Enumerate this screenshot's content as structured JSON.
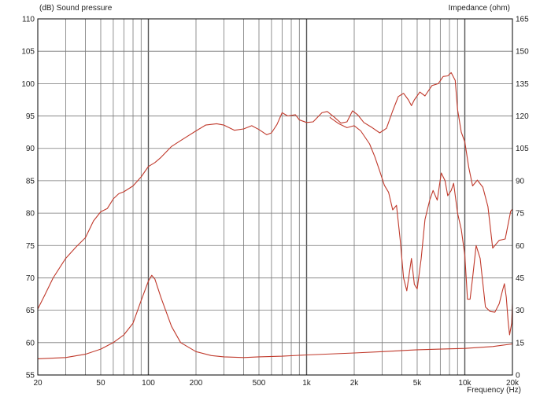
{
  "chart_data": {
    "type": "line",
    "ylabel_left": "(dB)  Sound pressure",
    "ylabel_right": "Impedance  (ohm)",
    "xlabel": "Frequency  (Hz)",
    "x_scale": "log",
    "xlim": [
      20,
      20000
    ],
    "ylim_left": [
      55,
      110
    ],
    "ylim_right": [
      0,
      165
    ],
    "grid": true,
    "x_ticks": [
      {
        "v": 20,
        "label": "20"
      },
      {
        "v": 50,
        "label": "50"
      },
      {
        "v": 100,
        "label": "100"
      },
      {
        "v": 200,
        "label": "200"
      },
      {
        "v": 500,
        "label": "500"
      },
      {
        "v": 1000,
        "label": "1k"
      },
      {
        "v": 2000,
        "label": "2k"
      },
      {
        "v": 5000,
        "label": "5k"
      },
      {
        "v": 10000,
        "label": "10k"
      },
      {
        "v": 20000,
        "label": "20k"
      }
    ],
    "y_ticks_left": [
      "55",
      "60",
      "65",
      "70",
      "75",
      "80",
      "85",
      "90",
      "95",
      "100",
      "105",
      "110"
    ],
    "y_ticks_right": [
      "0",
      "15",
      "30",
      "45",
      "60",
      "75",
      "90",
      "105",
      "120",
      "135",
      "150",
      "165"
    ],
    "colors": {
      "curve": "#c0392b",
      "grid_major": "#555555",
      "grid_minor": "#777777",
      "axis": "#000000"
    },
    "series": [
      {
        "axis": "left",
        "points": [
          [
            20,
            65.2
          ],
          [
            22,
            67.2
          ],
          [
            25,
            70
          ],
          [
            30,
            73
          ],
          [
            35,
            74.8
          ],
          [
            40,
            76.2
          ],
          [
            45,
            78.8
          ],
          [
            50,
            80.2
          ],
          [
            55,
            80.7
          ],
          [
            60,
            82.2
          ],
          [
            65,
            83
          ],
          [
            70,
            83.3
          ],
          [
            80,
            84.2
          ],
          [
            90,
            85.6
          ],
          [
            100,
            87.2
          ],
          [
            110,
            87.8
          ],
          [
            120,
            88.6
          ],
          [
            140,
            90.3
          ],
          [
            160,
            91.2
          ],
          [
            180,
            92
          ],
          [
            200,
            92.7
          ],
          [
            230,
            93.6
          ],
          [
            270,
            93.8
          ],
          [
            300,
            93.6
          ],
          [
            350,
            92.8
          ],
          [
            400,
            93
          ],
          [
            450,
            93.5
          ],
          [
            500,
            92.9
          ],
          [
            560,
            92.1
          ],
          [
            600,
            92.4
          ],
          [
            650,
            93.7
          ],
          [
            700,
            95.5
          ],
          [
            760,
            95
          ],
          [
            850,
            95.2
          ],
          [
            900,
            94.4
          ],
          [
            1000,
            94
          ],
          [
            1100,
            94.1
          ],
          [
            1250,
            95.5
          ],
          [
            1350,
            95.7
          ],
          [
            1500,
            94.8
          ],
          [
            1650,
            93.9
          ],
          [
            1800,
            94.1
          ],
          [
            1950,
            95.8
          ],
          [
            2100,
            95.2
          ],
          [
            2300,
            94
          ],
          [
            2600,
            93.2
          ],
          [
            2900,
            92.4
          ],
          [
            3200,
            93.1
          ],
          [
            3500,
            95.8
          ],
          [
            3800,
            98
          ],
          [
            4100,
            98.5
          ],
          [
            4400,
            97.5
          ],
          [
            4600,
            96.6
          ],
          [
            4800,
            97.5
          ],
          [
            5200,
            98.7
          ],
          [
            5600,
            98.1
          ],
          [
            6200,
            99.7
          ],
          [
            6800,
            100
          ],
          [
            7300,
            101.1
          ],
          [
            7800,
            101.2
          ],
          [
            8200,
            101.7
          ],
          [
            8700,
            100.5
          ],
          [
            9000,
            96
          ],
          [
            9500,
            92.5
          ],
          [
            10000,
            91
          ],
          [
            10600,
            87
          ],
          [
            11200,
            84.2
          ],
          [
            12000,
            85.1
          ],
          [
            13000,
            84
          ],
          [
            14000,
            81
          ],
          [
            15000,
            74.6
          ],
          [
            16500,
            75.8
          ],
          [
            18000,
            76
          ],
          [
            19500,
            80.3
          ],
          [
            20000,
            80.6
          ]
        ]
      },
      {
        "axis": "left",
        "points": [
          [
            20,
            57.5
          ],
          [
            30,
            57.7
          ],
          [
            40,
            58.2
          ],
          [
            50,
            59
          ],
          [
            60,
            60
          ],
          [
            70,
            61.2
          ],
          [
            80,
            63
          ],
          [
            90,
            66.5
          ],
          [
            100,
            69.5
          ],
          [
            105,
            70.4
          ],
          [
            110,
            69.8
          ],
          [
            120,
            67
          ],
          [
            140,
            62.5
          ],
          [
            160,
            60
          ],
          [
            200,
            58.6
          ],
          [
            250,
            58
          ],
          [
            300,
            57.8
          ],
          [
            400,
            57.7
          ],
          [
            500,
            57.8
          ],
          [
            700,
            57.9
          ],
          [
            1000,
            58.1
          ],
          [
            2000,
            58.4
          ],
          [
            3000,
            58.6
          ],
          [
            5000,
            58.9
          ],
          [
            7000,
            59
          ],
          [
            10000,
            59.1
          ],
          [
            15000,
            59.4
          ],
          [
            20000,
            59.8
          ]
        ]
      },
      {
        "axis": "left",
        "points": [
          [
            1400,
            94.8
          ],
          [
            1600,
            93.8
          ],
          [
            1800,
            93.2
          ],
          [
            2000,
            93.5
          ],
          [
            2200,
            92.7
          ],
          [
            2500,
            90.7
          ],
          [
            2700,
            88.7
          ],
          [
            2900,
            86.5
          ],
          [
            3100,
            84.3
          ],
          [
            3300,
            83.2
          ],
          [
            3500,
            80.5
          ],
          [
            3700,
            81.2
          ],
          [
            3900,
            76
          ],
          [
            4100,
            70
          ],
          [
            4300,
            68
          ],
          [
            4600,
            73
          ],
          [
            4800,
            69
          ],
          [
            5000,
            68.3
          ],
          [
            5300,
            73
          ],
          [
            5600,
            79
          ],
          [
            6000,
            82
          ],
          [
            6300,
            83.5
          ],
          [
            6700,
            82
          ],
          [
            7100,
            86.2
          ],
          [
            7500,
            85
          ],
          [
            7800,
            82.7
          ],
          [
            8200,
            83.5
          ],
          [
            8500,
            84.6
          ],
          [
            9000,
            80
          ],
          [
            9500,
            77.5
          ],
          [
            10000,
            73.5
          ],
          [
            10400,
            66.7
          ],
          [
            10800,
            66.7
          ],
          [
            11200,
            70
          ],
          [
            11800,
            75
          ],
          [
            12500,
            73
          ],
          [
            13500,
            65.5
          ],
          [
            14500,
            64.8
          ],
          [
            15500,
            64.7
          ],
          [
            16500,
            66
          ],
          [
            17300,
            68
          ],
          [
            17800,
            69.1
          ],
          [
            18300,
            67
          ],
          [
            18800,
            63.2
          ],
          [
            19200,
            61.2
          ],
          [
            19800,
            63
          ],
          [
            20000,
            66
          ]
        ]
      }
    ]
  }
}
